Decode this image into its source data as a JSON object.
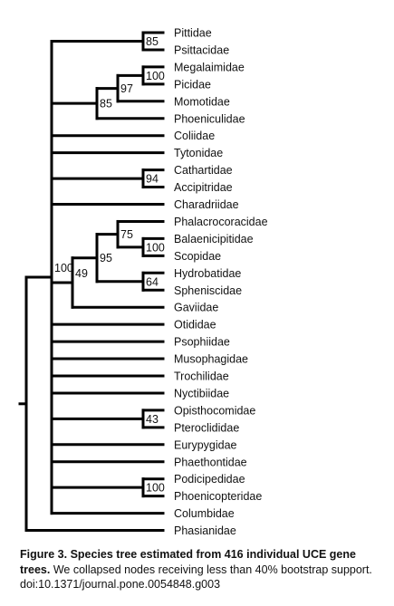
{
  "figure": {
    "caption_title": "Figure 3. Species tree estimated from 416 individual UCE gene trees.",
    "caption_body": "We collapsed nodes receiving less than 40% bootstrap support.",
    "doi": "doi:10.1371/journal.pone.0054848.g003"
  },
  "tree": {
    "taxa": [
      "Pittidae",
      "Psittacidae",
      "Megalaimidae",
      "Picidae",
      "Momotidae",
      "Phoeniculidae",
      "Coliidae",
      "Tytonidae",
      "Cathartidae",
      "Accipitridae",
      "Charadriidae",
      "Phalacrocoracidae",
      "Balaenicipitidae",
      "Scopidae",
      "Hydrobatidae",
      "Spheniscidae",
      "Gaviidae",
      "Otididae",
      "Psophiidae",
      "Musophagidae",
      "Trochilidae",
      "Nyctibiidae",
      "Opisthocomidae",
      "Pteroclididae",
      "Eurypygidae",
      "Phaethontidae",
      "Podicipedidae",
      "Phoenicopteridae",
      "Columbidae",
      "Phasianidae"
    ],
    "bootstrap": {
      "pittidae_psittacidae": "85",
      "megalaimidae_picidae": "100",
      "picidae_group_momotidae": "97",
      "piciform_group_phoeniculidae": "85",
      "cathartidae_accipitridae": "94",
      "balaenicipitidae_scopidae": "100",
      "phalacrocoracidae_group": "75",
      "hydrobatidae_spheniscidae": "64",
      "waterbird_core": "95",
      "waterbird_gaviidae": "49",
      "ingroup_root": "100",
      "opisthocomidae_pteroclididae": "43",
      "podicipedidae_phoenicopteridae": "100"
    }
  }
}
